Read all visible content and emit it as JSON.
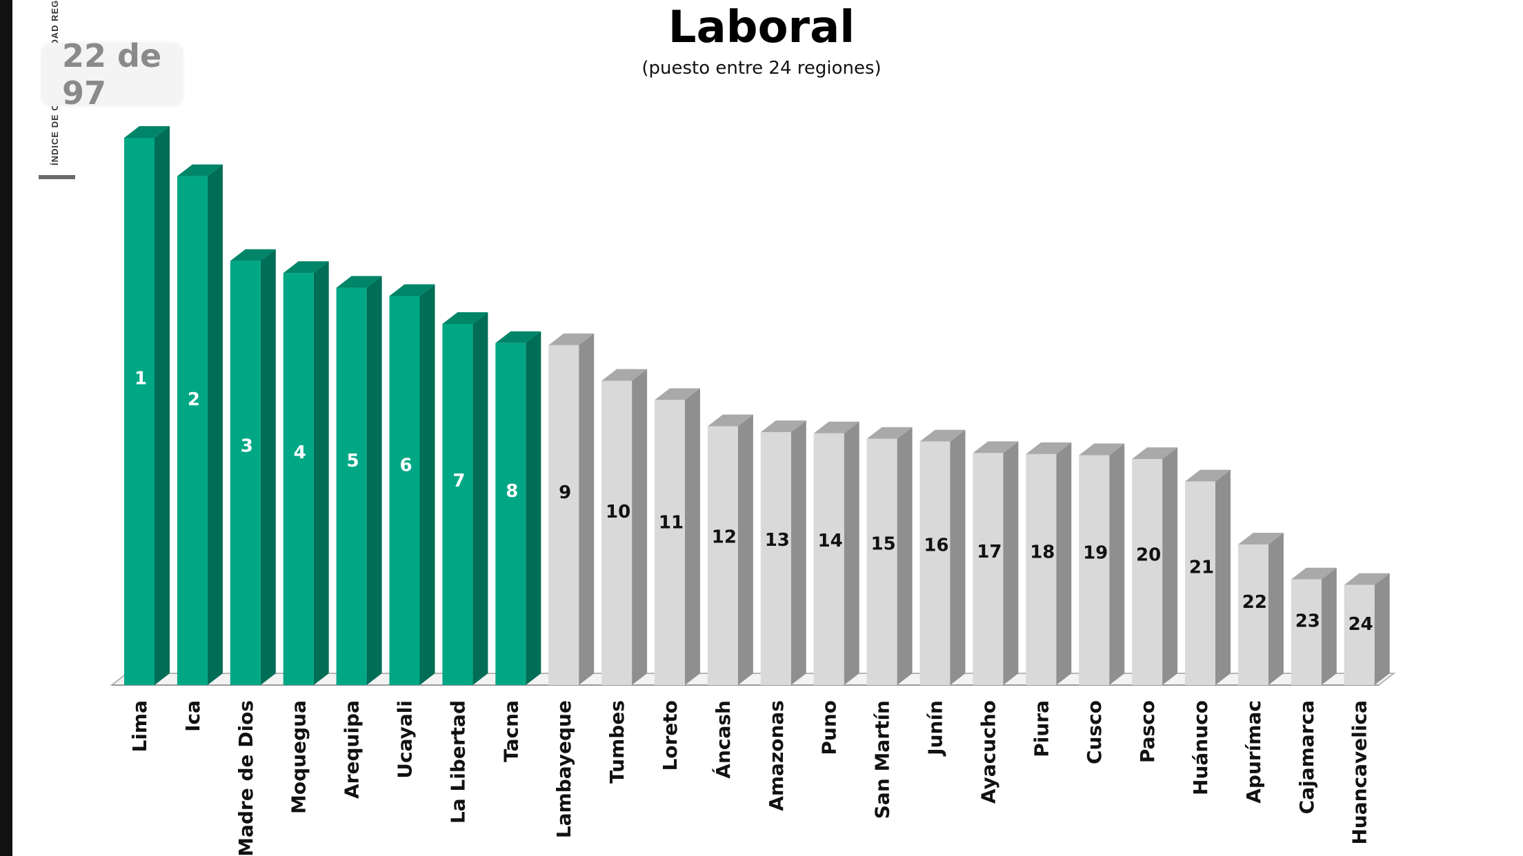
{
  "page_counter": "22 de 97",
  "side_label": "ÍNDICE DE COMPETITIVIDAD REG",
  "chart_data": {
    "type": "bar",
    "title": "Laboral",
    "subtitle": "(puesto entre 24 regiones)",
    "categories": [
      "Lima",
      "Ica",
      "Madre de Dios",
      "Moquegua",
      "Arequipa",
      "Ucayali",
      "La Libertad",
      "Tacna",
      "Lambayeque",
      "Tumbes",
      "Loreto",
      "Áncash",
      "Amazonas",
      "Puno",
      "San Martín",
      "Junín",
      "Ayacucho",
      "Piura",
      "Cusco",
      "Pasco",
      "Huánuco",
      "Apurímac",
      "Cajamarca",
      "Huancavelica"
    ],
    "ranks": [
      "1",
      "2",
      "3",
      "4",
      "5",
      "6",
      "7",
      "8",
      "9",
      "10",
      "11",
      "12",
      "13",
      "14",
      "15",
      "16",
      "17",
      "18",
      "19",
      "20",
      "21",
      "22",
      "23",
      "24"
    ],
    "values": [
      100,
      93,
      77.5,
      75.3,
      72.6,
      71.1,
      66,
      62.5,
      62.1,
      55.6,
      52.1,
      47.3,
      46.2,
      46,
      45,
      44.5,
      42.4,
      42.2,
      42,
      41.3,
      37.2,
      25.7,
      19.3,
      18.3
    ],
    "highlight_count": 8,
    "colors": {
      "highlight_front": "#00a785",
      "highlight_side": "#006d56",
      "highlight_top": "#008568",
      "other_front": "#d9d9d9",
      "other_side": "#8f8f8f",
      "other_top": "#a9a9a9",
      "label_on_highlight": "#ffffff",
      "label_on_other": "#111111"
    },
    "grid": false,
    "legend": "none"
  }
}
